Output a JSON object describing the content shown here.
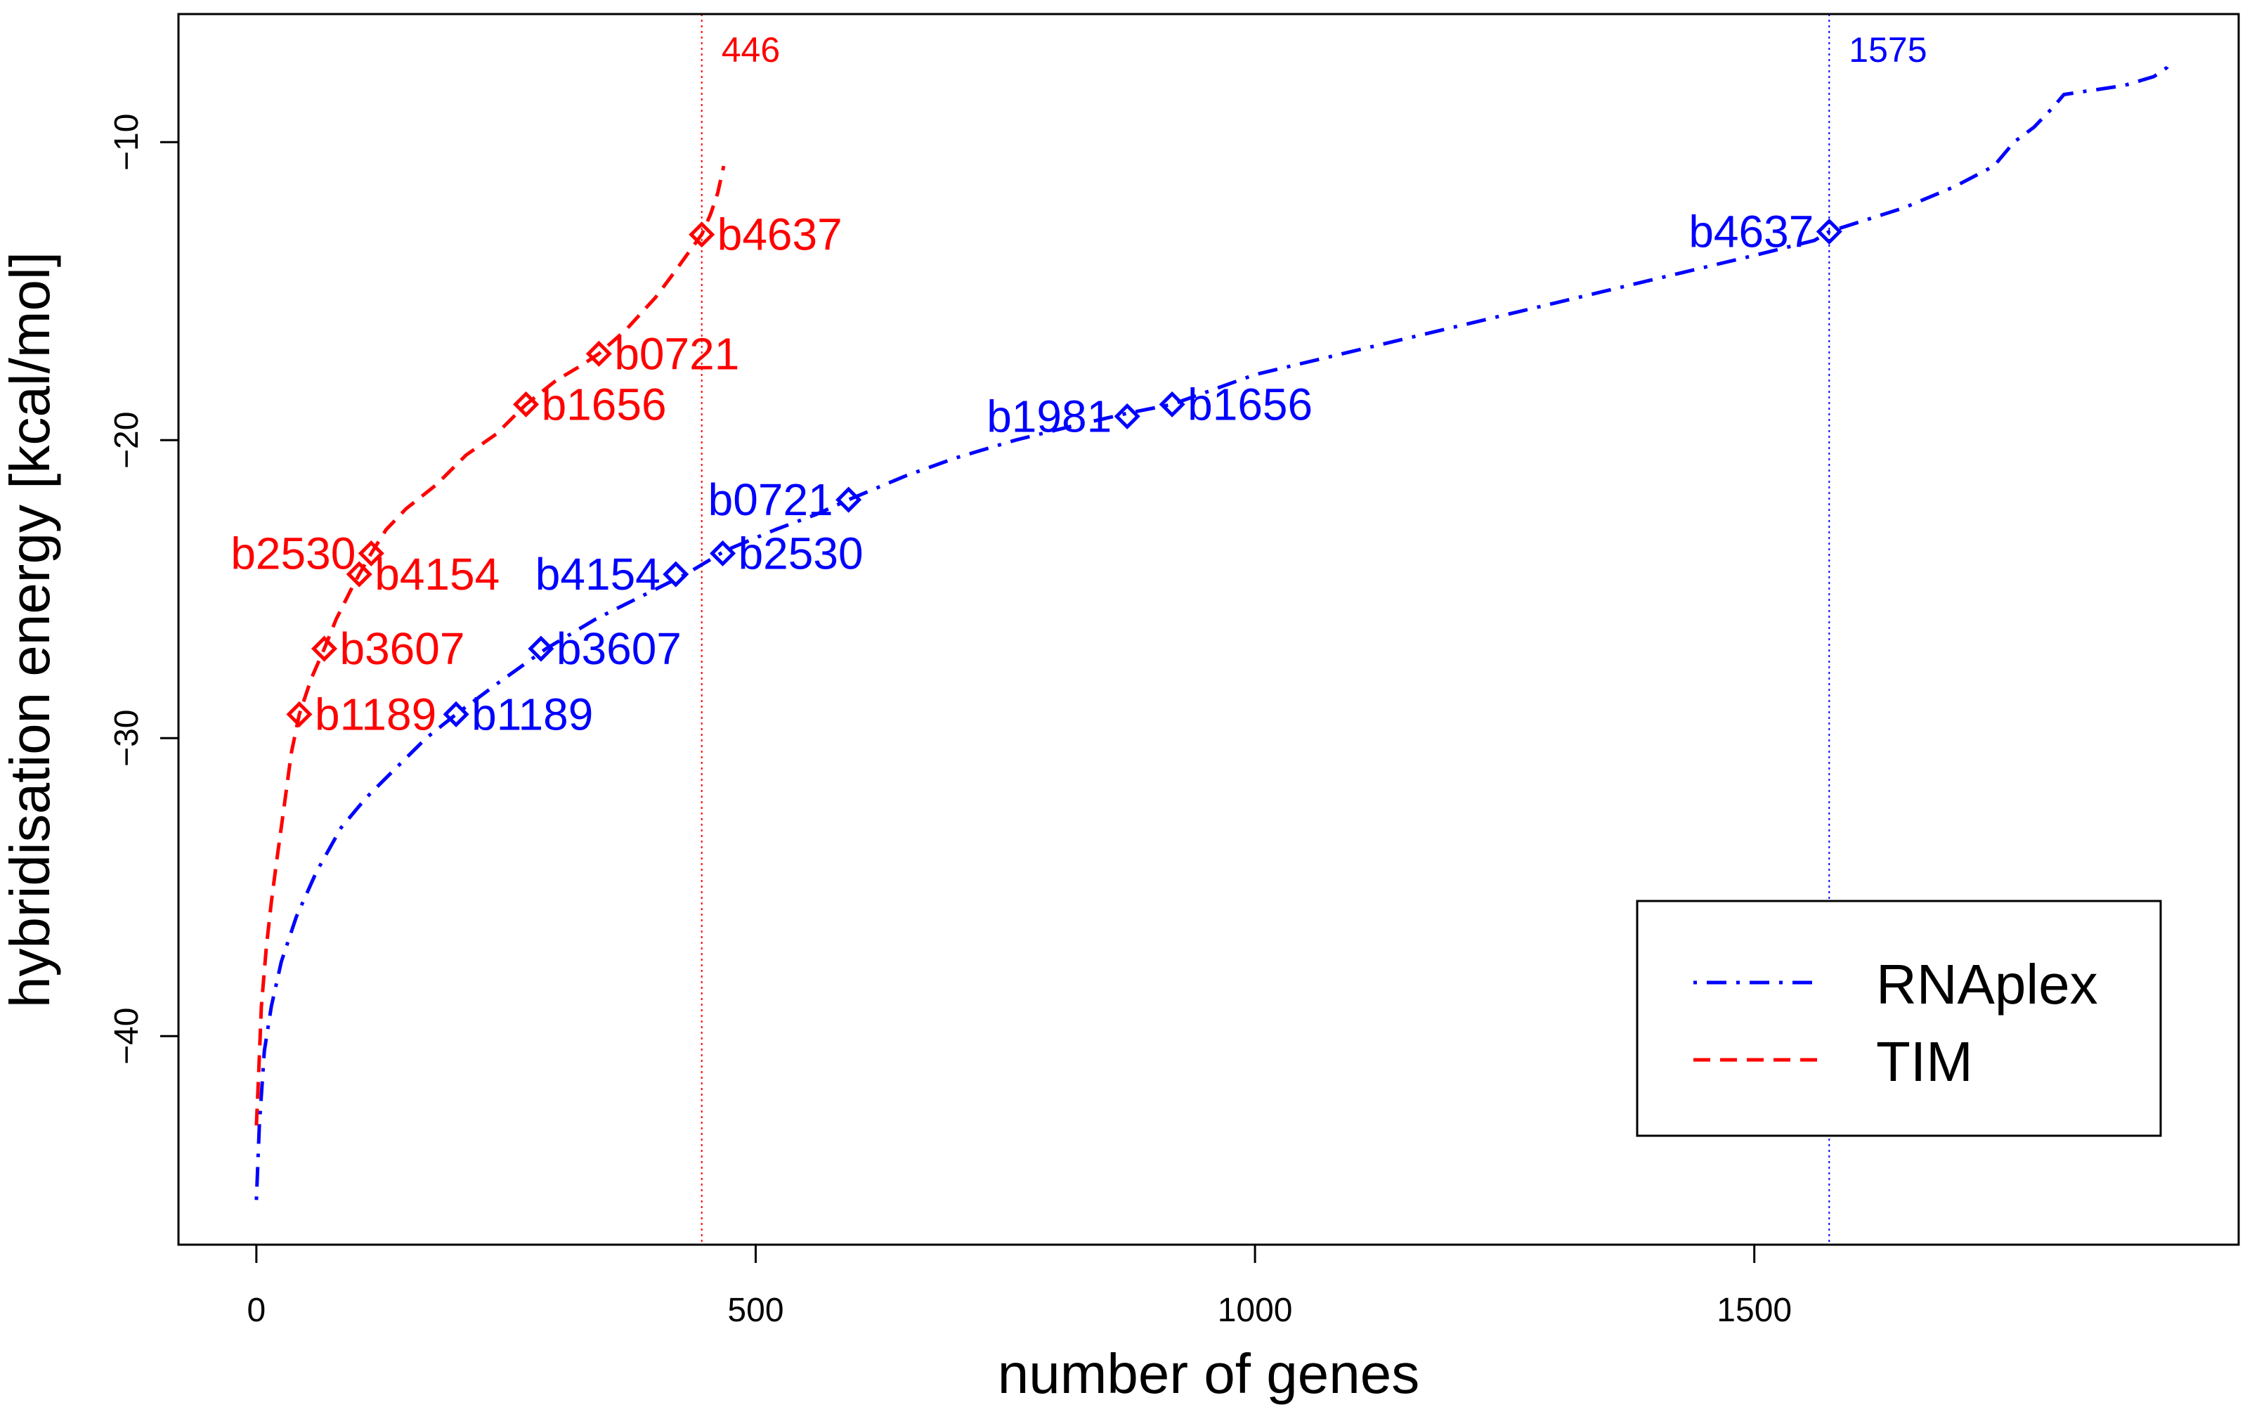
{
  "chart_data": {
    "type": "line",
    "title": "",
    "xlabel": "number of genes",
    "ylabel": "hybridisation energy [kcal/mol]",
    "xlim": [
      -78,
      1985
    ],
    "ylim": [
      -47,
      -5.7
    ],
    "xticks": [
      0,
      500,
      1000,
      1500
    ],
    "yticks": [
      -40,
      -30,
      -20,
      -10
    ],
    "legend": {
      "position": "bottom-right",
      "entries": [
        {
          "label": "RNAplex",
          "color": "#0000ff",
          "style": "dotdash"
        },
        {
          "label": "TIM",
          "color": "#ff0000",
          "style": "dashed"
        }
      ]
    },
    "vlines": [
      {
        "x": 446,
        "label": "446",
        "color": "#ff0000"
      },
      {
        "x": 1575,
        "label": "1575",
        "color": "#0000ff"
      }
    ],
    "series": [
      {
        "name": "RNAplex",
        "color": "#0000ff",
        "style": "dotdash",
        "x": [
          0,
          3,
          8,
          15,
          25,
          40,
          60,
          85,
          110,
          140,
          170,
          200,
          240,
          290,
          340,
          400,
          430,
          470,
          520,
          560,
          593,
          650,
          700,
          760,
          820,
          872,
          917,
          1000,
          1100,
          1200,
          1300,
          1400,
          1500,
          1560,
          1575,
          1650,
          1700,
          1740,
          1760,
          1780,
          1800,
          1810,
          1830,
          1850,
          1870,
          1900,
          1913,
          1918
        ],
        "y": [
          -45.5,
          -43,
          -40.5,
          -39,
          -37.5,
          -36,
          -34.5,
          -33,
          -32,
          -31,
          -30,
          -29.2,
          -28.2,
          -27,
          -26,
          -25,
          -24.5,
          -23.7,
          -23,
          -22.5,
          -22,
          -21.2,
          -20.6,
          -20,
          -19.5,
          -19.1,
          -18.8,
          -17.8,
          -17,
          -16.2,
          -15.4,
          -14.6,
          -13.8,
          -13.3,
          -13,
          -12.2,
          -11.5,
          -10.8,
          -10,
          -9.5,
          -8.8,
          -8.4,
          -8.3,
          -8.2,
          -8.1,
          -7.8,
          -7.5,
          -7.2
        ]
      },
      {
        "name": "TIM",
        "color": "#ff0000",
        "style": "dashed",
        "x": [
          0,
          2,
          5,
          10,
          15,
          20,
          27,
          35,
          43,
          55,
          68,
          80,
          95,
          103,
          115,
          130,
          150,
          180,
          210,
          240,
          270,
          300,
          325,
          343,
          370,
          400,
          420,
          435,
          446,
          455,
          462,
          468
        ],
        "y": [
          -43,
          -41.5,
          -39,
          -37,
          -35.5,
          -34.2,
          -32.5,
          -30.5,
          -29.2,
          -28,
          -27,
          -26,
          -25,
          -24.5,
          -23.8,
          -23,
          -22.3,
          -21.5,
          -20.5,
          -19.8,
          -18.8,
          -18,
          -17.5,
          -17.1,
          -16.3,
          -15.2,
          -14.3,
          -13.6,
          -13.1,
          -12.4,
          -11.7,
          -10.8
        ]
      }
    ],
    "annotations": [
      {
        "series": "TIM",
        "label": "b4637",
        "x": 446,
        "y": -13.1,
        "side": "right"
      },
      {
        "series": "TIM",
        "label": "b0721",
        "x": 343,
        "y": -17.1,
        "side": "right"
      },
      {
        "series": "TIM",
        "label": "b1656",
        "x": 270,
        "y": -18.8,
        "side": "right"
      },
      {
        "series": "TIM",
        "label": "b2530",
        "x": 115,
        "y": -23.8,
        "side": "left"
      },
      {
        "series": "TIM",
        "label": "b4154",
        "x": 103,
        "y": -24.5,
        "side": "right"
      },
      {
        "series": "TIM",
        "label": "b3607",
        "x": 68,
        "y": -27,
        "side": "right"
      },
      {
        "series": "TIM",
        "label": "b1189",
        "x": 43,
        "y": -29.2,
        "side": "right"
      },
      {
        "series": "RNAplex",
        "label": "b4637",
        "x": 1575,
        "y": -13,
        "side": "left"
      },
      {
        "series": "RNAplex",
        "label": "b1981",
        "x": 872,
        "y": -19.2,
        "side": "left"
      },
      {
        "series": "RNAplex",
        "label": "b1656",
        "x": 917,
        "y": -18.8,
        "side": "right"
      },
      {
        "series": "RNAplex",
        "label": "b0721",
        "x": 593,
        "y": -22,
        "side": "left"
      },
      {
        "series": "RNAplex",
        "label": "b2530",
        "x": 467,
        "y": -23.8,
        "side": "right"
      },
      {
        "series": "RNAplex",
        "label": "b4154",
        "x": 420,
        "y": -24.5,
        "side": "left"
      },
      {
        "series": "RNAplex",
        "label": "b3607",
        "x": 285,
        "y": -27,
        "side": "right"
      },
      {
        "series": "RNAplex",
        "label": "b1189",
        "x": 200,
        "y": -29.2,
        "side": "right"
      }
    ]
  }
}
